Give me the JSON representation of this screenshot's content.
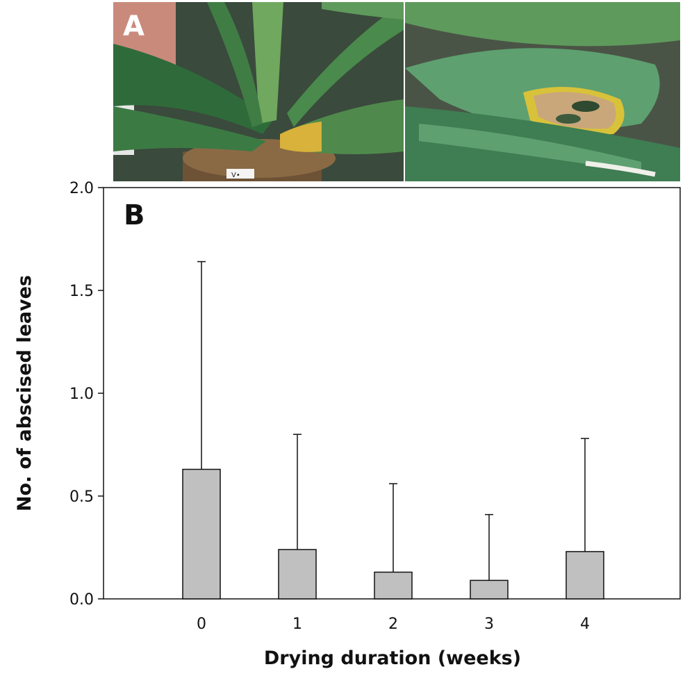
{
  "panel_a": {
    "letter": "A",
    "pot_label": "V•"
  },
  "colors": {
    "bar_fill": "#c0c0c0",
    "bar_stroke": "#111111",
    "leaf_dark": "#2f6b3a",
    "leaf_light": "#5e9a5c",
    "leaf_yellow": "#d8c23a",
    "lesion": "#c9a77a",
    "moss": "#7a5a3a"
  },
  "chart_data": {
    "type": "bar",
    "panel_letter": "B",
    "categories": [
      "0",
      "1",
      "2",
      "3",
      "4"
    ],
    "values": [
      0.63,
      0.24,
      0.13,
      0.09,
      0.23
    ],
    "error_upper": [
      1.64,
      0.8,
      0.56,
      0.41,
      0.78
    ],
    "xlabel": "Drying duration (weeks)",
    "ylabel": "No. of abscised leaves",
    "ylim": [
      0.0,
      2.0
    ],
    "yticks": [
      "0.0",
      "0.5",
      "1.0",
      "1.5",
      "2.0"
    ],
    "grid": false,
    "legend": false
  }
}
